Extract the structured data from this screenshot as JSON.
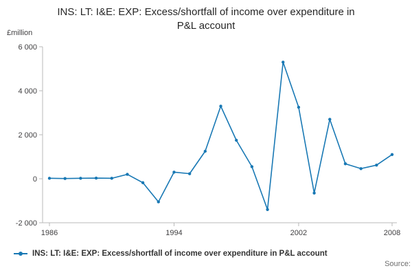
{
  "title": "INS: LT: I&E: EXP: Excess/shortfall of income over expenditure in P&L account",
  "y_unit_label": "£million",
  "legend": {
    "label": "INS: LT: I&E: EXP: Excess/shortfall of income over expenditure in P&L account"
  },
  "source_label": "Source:",
  "colors": {
    "line": "#1878b4",
    "axis": "#b8b8b8",
    "tick": "#414042"
  },
  "chart_data": {
    "type": "line",
    "title": "INS: LT: I&E: EXP: Excess/shortfall of income over expenditure in P&L account",
    "ylabel": "£million",
    "xlabel": "",
    "grid": false,
    "legend_position": "bottom-left",
    "xlim": [
      1986,
      2008
    ],
    "ylim": [
      -2000,
      6000
    ],
    "yticks": [
      -2000,
      0,
      2000,
      4000,
      6000
    ],
    "ytick_labels": [
      "-2 000",
      "0",
      "2 000",
      "4 000",
      "6 000"
    ],
    "xticks": [
      1986,
      1994,
      2002,
      2008
    ],
    "x": [
      1986,
      1987,
      1988,
      1989,
      1990,
      1991,
      1992,
      1993,
      1994,
      1995,
      1996,
      1997,
      1998,
      1999,
      2000,
      2001,
      2002,
      2003,
      2004,
      2005,
      2006,
      2007,
      2008
    ],
    "values": [
      20,
      10,
      20,
      30,
      20,
      200,
      -180,
      -1050,
      300,
      230,
      1250,
      3300,
      1750,
      550,
      -1400,
      5300,
      3250,
      -650,
      2700,
      680,
      460,
      620,
      1100
    ]
  }
}
